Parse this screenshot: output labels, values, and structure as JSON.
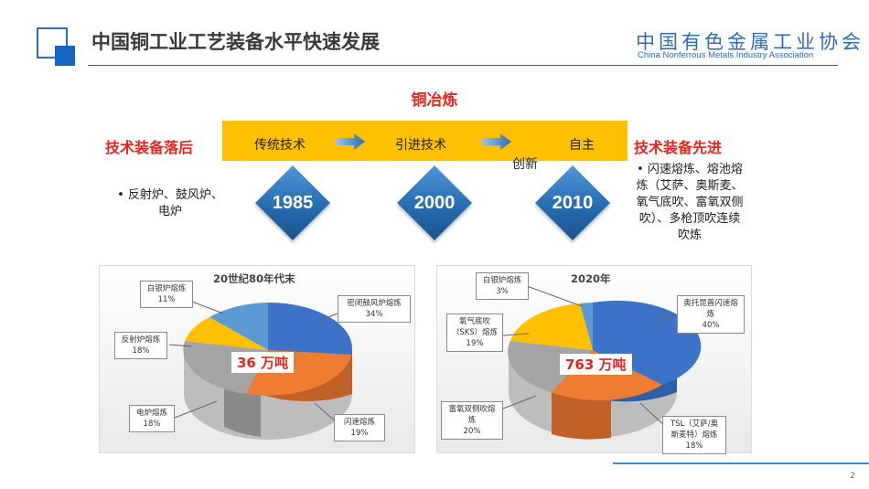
{
  "header": {
    "title": "中国铜工业工艺装备水平快速发展",
    "org_name_cn": "中国有色金属工业协会",
    "org_name_en": "China Nonferrous Metals Industry Association"
  },
  "section": {
    "title": "铜冶炼"
  },
  "timeline": {
    "left_label": "技术装备落后",
    "right_label": "技术装备先进",
    "stages": [
      "传统技术",
      "引进技术",
      "自主",
      "创新"
    ],
    "years": [
      "1985",
      "2000",
      "2010"
    ],
    "left_note": "• 反射炉、鼓风炉、电炉",
    "right_note": "• 闪速熔炼、熔池熔炼（艾萨、奥斯麦、氧气底吹、富氧双侧吹）、多枪顶吹连续吹炼"
  },
  "pies": [
    {
      "title": "20世纪80年代末",
      "total": "36 万吨",
      "callouts": [
        {
          "label": "白银炉熔炼",
          "value": "11%"
        },
        {
          "label": "反射炉熔炼",
          "value": "18%"
        },
        {
          "label": "电炉熔炼",
          "value": "18%"
        },
        {
          "label": "闪速熔炼",
          "value": "19%"
        },
        {
          "label": "密闭鼓风炉熔炼",
          "value": "34%"
        }
      ],
      "colors": {
        "blue": "#3d73c9",
        "orange": "#ed7d31",
        "gray": "#a5a5a5",
        "yellow": "#ffc000",
        "lightblue": "#5b9bd5"
      }
    },
    {
      "title": "2020年",
      "total": "763 万吨",
      "callouts": [
        {
          "label": "白银炉熔炼",
          "value": "3%"
        },
        {
          "label": "氧气底吹（SKS）熔炼",
          "value": "19%"
        },
        {
          "label": "富氧双侧吹熔炼",
          "value": "20%"
        },
        {
          "label": "TSL（艾萨/奥斯麦特）熔炼",
          "value": "18%"
        },
        {
          "label": "奥托昆普闪速熔炼",
          "value": "40%"
        }
      ]
    }
  ],
  "footer": {
    "page_number": "2"
  }
}
